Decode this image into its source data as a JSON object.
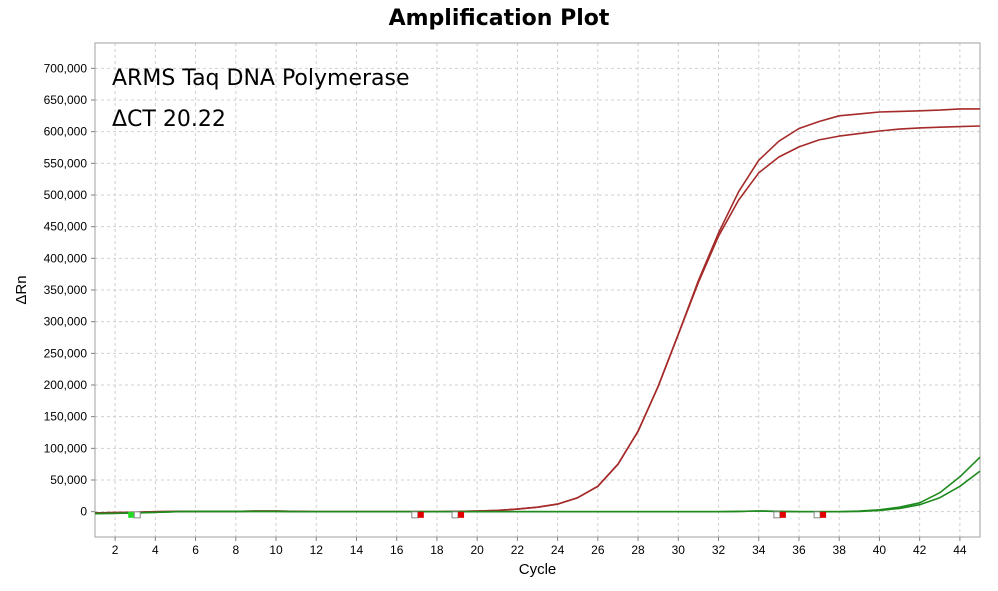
{
  "chart_data": {
    "type": "line",
    "title": "Amplification Plot",
    "xlabel": "Cycle",
    "ylabel": "ΔRn",
    "xlim": [
      1,
      45
    ],
    "ylim": [
      -40000,
      740000
    ],
    "x_ticks": [
      2,
      4,
      6,
      8,
      10,
      12,
      14,
      16,
      18,
      20,
      22,
      24,
      26,
      28,
      30,
      32,
      34,
      36,
      38,
      40,
      42,
      44
    ],
    "y_ticks": [
      0,
      50000,
      100000,
      150000,
      200000,
      250000,
      300000,
      350000,
      400000,
      450000,
      500000,
      550000,
      600000,
      650000,
      700000
    ],
    "y_tick_labels": [
      "0",
      "50,000",
      "100,000",
      "150,000",
      "200,000",
      "250,000",
      "300,000",
      "350,000",
      "400,000",
      "450,000",
      "500,000",
      "550,000",
      "600,000",
      "650,000",
      "700,000"
    ],
    "grid": true,
    "annotations": [
      "ARMS Taq DNA Polymerase",
      "ΔCT 20.22"
    ],
    "colors": {
      "red_series": "#a52a2a",
      "green_series": "#1e8a1e",
      "grid": "#d0d0d0",
      "marker_red": "#e00000",
      "marker_green": "#22dd22"
    },
    "series": [
      {
        "color": "#a52a2a",
        "x": [
          1,
          2,
          3,
          4,
          5,
          6,
          7,
          8,
          9,
          10,
          11,
          12,
          13,
          14,
          15,
          16,
          17,
          18,
          19,
          20,
          21,
          22,
          23,
          24,
          25,
          26,
          27,
          28,
          29,
          30,
          31,
          32,
          33,
          34,
          35,
          36,
          37,
          38,
          39,
          40,
          41,
          42,
          43,
          44,
          45
        ],
        "y": [
          -2000,
          -1500,
          -1000,
          0,
          500,
          500,
          500,
          500,
          1000,
          1000,
          500,
          0,
          0,
          0,
          0,
          0,
          0,
          0,
          500,
          1000,
          2000,
          4000,
          7000,
          12000,
          22000,
          40000,
          75000,
          127000,
          198000,
          280000,
          365000,
          440000,
          505000,
          555000,
          585000,
          605000,
          616000,
          625000,
          628000,
          631000,
          632000,
          633000,
          634000,
          636000,
          636000
        ]
      },
      {
        "color": "#a52a2a",
        "x": [
          1,
          2,
          3,
          4,
          5,
          6,
          7,
          8,
          9,
          10,
          11,
          12,
          13,
          14,
          15,
          16,
          17,
          18,
          19,
          20,
          21,
          22,
          23,
          24,
          25,
          26,
          27,
          28,
          29,
          30,
          31,
          32,
          33,
          34,
          35,
          36,
          37,
          38,
          39,
          40,
          41,
          42,
          43,
          44,
          45
        ],
        "y": [
          -2000,
          -1500,
          -1000,
          0,
          500,
          500,
          500,
          500,
          1000,
          1000,
          500,
          0,
          0,
          0,
          0,
          0,
          0,
          0,
          500,
          1000,
          2000,
          4000,
          7000,
          12000,
          22000,
          40000,
          75000,
          127000,
          198000,
          280000,
          362000,
          435000,
          492000,
          535000,
          560000,
          576000,
          587000,
          593000,
          597000,
          601000,
          604000,
          606000,
          607000,
          608000,
          609000
        ]
      },
      {
        "color": "#1e8a1e",
        "x": [
          1,
          2,
          3,
          4,
          5,
          6,
          7,
          8,
          9,
          10,
          11,
          12,
          13,
          14,
          15,
          16,
          17,
          18,
          19,
          20,
          21,
          22,
          23,
          24,
          25,
          26,
          27,
          28,
          29,
          30,
          31,
          32,
          33,
          34,
          35,
          36,
          37,
          38,
          39,
          40,
          41,
          42,
          43,
          44,
          45
        ],
        "y": [
          -3000,
          -2500,
          -2000,
          -1000,
          0,
          500,
          500,
          500,
          500,
          500,
          0,
          0,
          0,
          0,
          0,
          0,
          0,
          0,
          0,
          0,
          0,
          0,
          0,
          0,
          0,
          0,
          0,
          0,
          0,
          0,
          0,
          0,
          500,
          1000,
          500,
          0,
          0,
          0,
          1000,
          3000,
          7000,
          14000,
          30000,
          55000,
          86000
        ]
      },
      {
        "color": "#1e8a1e",
        "x": [
          1,
          2,
          3,
          4,
          5,
          6,
          7,
          8,
          9,
          10,
          11,
          12,
          13,
          14,
          15,
          16,
          17,
          18,
          19,
          20,
          21,
          22,
          23,
          24,
          25,
          26,
          27,
          28,
          29,
          30,
          31,
          32,
          33,
          34,
          35,
          36,
          37,
          38,
          39,
          40,
          41,
          42,
          43,
          44,
          45
        ],
        "y": [
          -3000,
          -2500,
          -2000,
          -1000,
          0,
          500,
          500,
          500,
          500,
          500,
          0,
          0,
          0,
          0,
          0,
          0,
          0,
          0,
          0,
          0,
          0,
          0,
          0,
          0,
          0,
          0,
          0,
          0,
          0,
          0,
          0,
          0,
          500,
          1000,
          500,
          0,
          0,
          0,
          500,
          2000,
          5000,
          11000,
          22000,
          40000,
          64000
        ]
      }
    ],
    "markers": [
      {
        "x": 2.9,
        "color": "green"
      },
      {
        "x": 17.1,
        "color": "red"
      },
      {
        "x": 19.1,
        "color": "red"
      },
      {
        "x": 35.1,
        "color": "red"
      },
      {
        "x": 37.1,
        "color": "red"
      }
    ]
  }
}
